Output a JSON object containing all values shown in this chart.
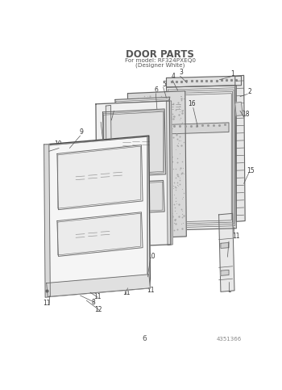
{
  "title": "DOOR PARTS",
  "subtitle1": "For model: RF324PXEQ0",
  "subtitle2": "(Designer White)",
  "page_number": "6",
  "part_number": "4351366",
  "bg_color": "#ffffff",
  "lc": "#666666",
  "lc_dark": "#444444",
  "fig_width": 3.5,
  "fig_height": 4.83,
  "dpi": 100
}
